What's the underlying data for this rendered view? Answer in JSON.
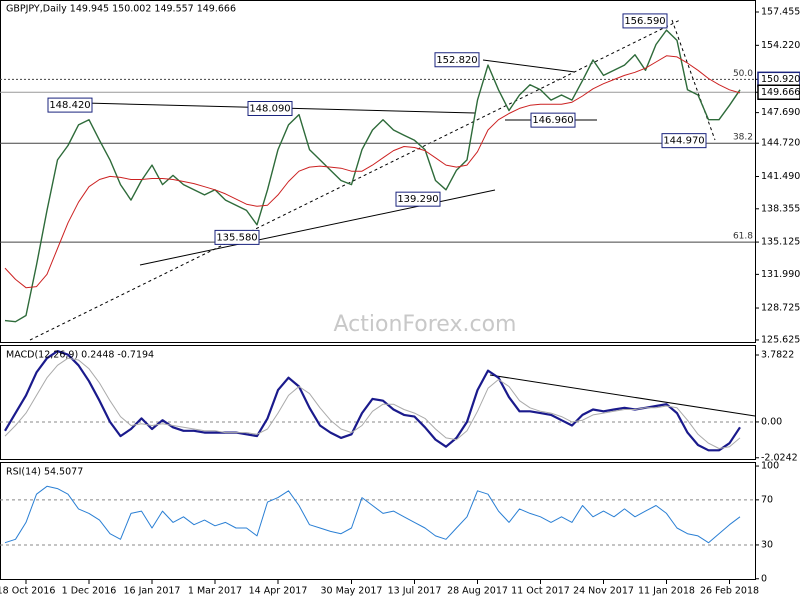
{
  "chart_data": [
    {
      "type": "line",
      "title": "GBPJPY,Daily 149.945 150.002 149.557 149.666",
      "watermark": "ActionForex.com",
      "ylim": [
        125.33,
        158.62
      ],
      "yticks": [
        {
          "value": 157.455,
          "label": "157.455"
        },
        {
          "value": 154.22,
          "label": "154.220"
        },
        {
          "value": 150.92,
          "label": "150.920",
          "box": "#1a237e"
        },
        {
          "value": 149.666,
          "label": "149.666",
          "box": "#000000",
          "price_line": true
        },
        {
          "value": 147.69,
          "label": "147.690"
        },
        {
          "value": 144.72,
          "label": "144.720"
        },
        {
          "value": 141.49,
          "label": "141.490"
        },
        {
          "value": 138.355,
          "label": "138.355"
        },
        {
          "value": 135.125,
          "label": "135.125"
        },
        {
          "value": 131.99,
          "label": "131.990"
        },
        {
          "value": 128.725,
          "label": "128.725"
        },
        {
          "value": 125.625,
          "label": "125.625"
        }
      ],
      "levels": [
        {
          "value": 150.92,
          "label": "50.0",
          "style": "dotted"
        },
        {
          "value": 144.72,
          "label": "38.2",
          "style": "solid"
        },
        {
          "value": 135.125,
          "label": "61.8",
          "style": "solid"
        }
      ],
      "annotations": [
        {
          "value": 148.42,
          "label": "148.420"
        },
        {
          "value": 148.09,
          "label": "148.090"
        },
        {
          "value": 135.58,
          "label": "135.580"
        },
        {
          "value": 139.29,
          "label": "139.290"
        },
        {
          "value": 152.82,
          "label": "152.820"
        },
        {
          "value": 146.96,
          "label": "146.960"
        },
        {
          "value": 156.59,
          "label": "156.590"
        },
        {
          "value": 144.97,
          "label": "144.970"
        }
      ],
      "series": [
        {
          "color": "#2e6b3a",
          "width": 1.4,
          "values": [
            127.5,
            127.4,
            128.0,
            132.9,
            138.2,
            143.1,
            144.5,
            146.5,
            147.0,
            145.0,
            143.1,
            140.7,
            139.2,
            141.1,
            142.6,
            140.7,
            141.6,
            140.7,
            140.2,
            139.7,
            140.2,
            139.2,
            138.7,
            138.2,
            136.8,
            140.2,
            144.1,
            146.5,
            147.5,
            144.1,
            143.1,
            142.1,
            141.1,
            140.7,
            144.1,
            146.0,
            147.0,
            146.0,
            145.5,
            145.0,
            144.1,
            141.1,
            140.2,
            142.1,
            143.1,
            148.9,
            152.3,
            149.9,
            147.9,
            149.4,
            150.4,
            149.9,
            148.9,
            149.4,
            148.9,
            150.8,
            152.8,
            151.3,
            151.8,
            152.3,
            153.3,
            151.8,
            154.3,
            155.7,
            154.7,
            149.9,
            149.4,
            147.0,
            147.0,
            148.4,
            149.9
          ]
        },
        {
          "color": "#cc2222",
          "width": 1,
          "values": [
            132.6,
            131.5,
            130.7,
            130.8,
            132.0,
            134.5,
            137.0,
            139.0,
            140.5,
            141.2,
            141.5,
            141.4,
            141.2,
            141.2,
            141.3,
            141.3,
            141.2,
            141.0,
            140.8,
            140.5,
            140.2,
            139.8,
            139.3,
            138.8,
            138.6,
            138.7,
            139.7,
            141.0,
            142.0,
            142.4,
            142.5,
            142.4,
            142.3,
            142.0,
            142.0,
            142.6,
            143.3,
            144.0,
            144.4,
            144.3,
            144.0,
            143.3,
            142.6,
            142.4,
            142.6,
            143.9,
            146.0,
            147.0,
            147.6,
            148.1,
            148.4,
            148.5,
            148.5,
            148.5,
            148.7,
            149.3,
            150.0,
            150.5,
            150.9,
            151.3,
            151.6,
            152.0,
            152.6,
            153.2,
            153.1,
            152.5,
            151.8,
            151.0,
            150.4,
            149.9,
            149.6
          ]
        }
      ]
    },
    {
      "type": "line",
      "title": "MACD(12,26,9) 0.2448 -0.7194",
      "ylim": [
        -2.15,
        4.29
      ],
      "yticks": [
        3.7822,
        {
          "value": 0,
          "label": "0.00",
          "dashed": true
        },
        -2.0242
      ],
      "series": [
        {
          "color": "#1a1a8c",
          "width": 2.2,
          "values": [
            -0.5,
            0.5,
            1.5,
            2.8,
            3.6,
            4.0,
            3.8,
            3.2,
            2.3,
            1.2,
            0.0,
            -0.8,
            -0.4,
            0.2,
            -0.4,
            0.1,
            -0.3,
            -0.5,
            -0.5,
            -0.6,
            -0.6,
            -0.6,
            -0.6,
            -0.7,
            -0.8,
            0.2,
            1.8,
            2.5,
            2.0,
            0.8,
            -0.2,
            -0.6,
            -0.9,
            -0.7,
            0.5,
            1.3,
            1.2,
            0.7,
            0.4,
            0.3,
            -0.3,
            -1.0,
            -1.4,
            -0.9,
            0.0,
            1.8,
            2.9,
            2.5,
            1.4,
            0.6,
            0.6,
            0.5,
            0.4,
            0.1,
            -0.2,
            0.4,
            0.7,
            0.6,
            0.7,
            0.8,
            0.7,
            0.8,
            0.9,
            1.0,
            0.5,
            -0.6,
            -1.3,
            -1.6,
            -1.6,
            -1.2,
            -0.3
          ]
        },
        {
          "color": "#aaaaaa",
          "width": 1,
          "values": [
            -0.8,
            -0.2,
            0.5,
            1.5,
            2.5,
            3.2,
            3.6,
            3.5,
            3.0,
            2.2,
            1.2,
            0.3,
            -0.2,
            -0.1,
            -0.2,
            -0.1,
            -0.2,
            -0.3,
            -0.4,
            -0.5,
            -0.5,
            -0.6,
            -0.6,
            -0.6,
            -0.7,
            -0.4,
            0.5,
            1.5,
            2.0,
            1.6,
            0.8,
            0.1,
            -0.4,
            -0.6,
            -0.2,
            0.6,
            1.0,
            1.0,
            0.7,
            0.5,
            0.2,
            -0.4,
            -0.9,
            -1.0,
            -0.5,
            0.6,
            1.9,
            2.4,
            2.0,
            1.2,
            0.8,
            0.6,
            0.5,
            0.3,
            0.0,
            0.1,
            0.4,
            0.5,
            0.6,
            0.7,
            0.7,
            0.8,
            0.8,
            0.9,
            0.8,
            0.1,
            -0.7,
            -1.2,
            -1.5,
            -1.4,
            -0.9
          ]
        }
      ]
    },
    {
      "type": "line",
      "title": "RSI(14) 54.5077",
      "ylim": [
        -1.1,
        102.7
      ],
      "yticks": [
        100,
        {
          "value": 70,
          "label": "70",
          "dashed": true
        },
        {
          "value": 30,
          "label": "30",
          "dashed": true
        },
        0
      ],
      "categories": [
        null,
        null,
        "18 Oct 2016",
        null,
        null,
        null,
        null,
        null,
        "1 Dec 2016",
        null,
        null,
        null,
        null,
        null,
        "16 Jan 2017",
        null,
        null,
        null,
        null,
        null,
        "1 Mar 2017",
        null,
        null,
        null,
        null,
        null,
        "14 Apr 2017",
        null,
        null,
        null,
        null,
        null,
        null,
        "30 May 2017",
        null,
        null,
        null,
        null,
        null,
        "13 Jul 2017",
        null,
        null,
        null,
        null,
        null,
        "28 Aug 2017",
        null,
        null,
        null,
        null,
        null,
        "11 Oct 2017",
        null,
        null,
        null,
        null,
        null,
        "24 Nov 2017",
        null,
        null,
        null,
        null,
        null,
        "11 Jan 2018",
        null,
        null,
        null,
        null,
        null,
        "26 Feb 2018",
        null
      ],
      "series": [
        {
          "color": "#2a7fd4",
          "width": 1,
          "values": [
            32,
            35,
            50,
            75,
            82,
            80,
            75,
            62,
            58,
            52,
            40,
            35,
            58,
            60,
            45,
            60,
            50,
            55,
            48,
            52,
            47,
            50,
            45,
            45,
            38,
            68,
            72,
            78,
            65,
            48,
            45,
            42,
            40,
            45,
            72,
            65,
            58,
            60,
            55,
            50,
            45,
            38,
            35,
            45,
            55,
            78,
            75,
            60,
            50,
            62,
            58,
            55,
            50,
            55,
            50,
            65,
            55,
            60,
            55,
            62,
            55,
            60,
            65,
            58,
            45,
            40,
            38,
            32,
            40,
            48,
            55
          ]
        }
      ]
    }
  ]
}
